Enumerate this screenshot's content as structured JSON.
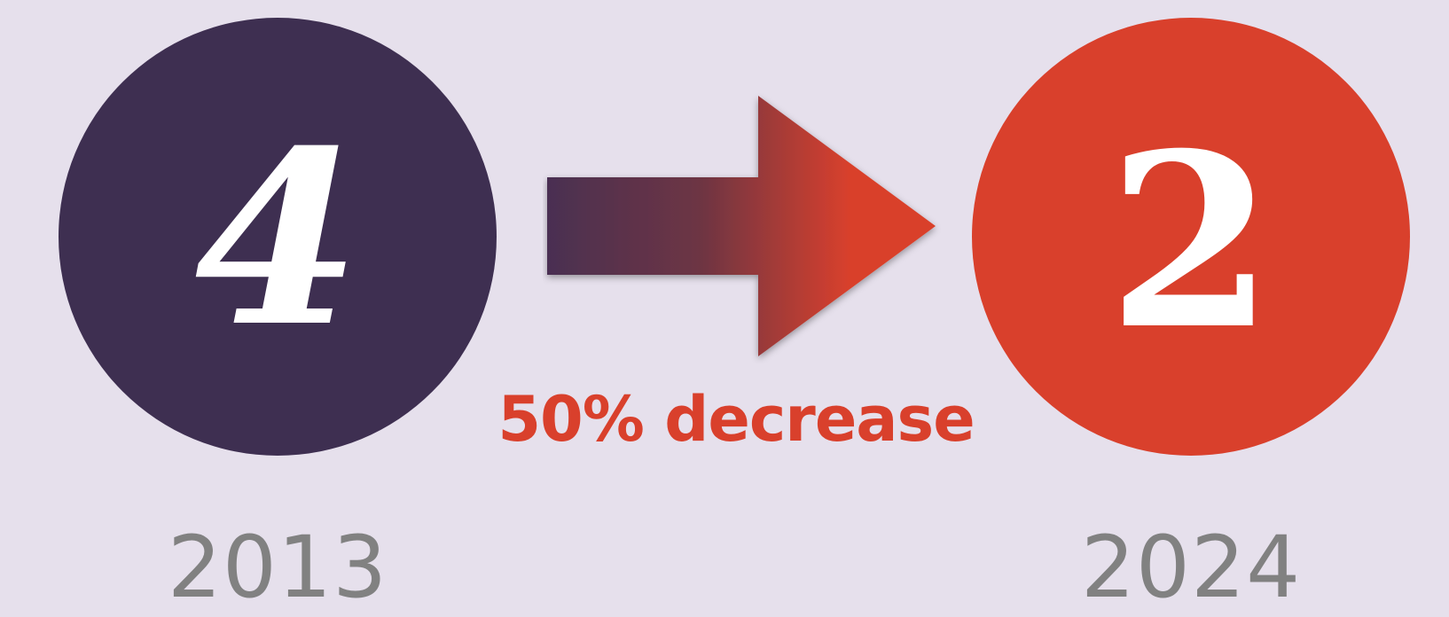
{
  "comparison": {
    "before": {
      "value": "4",
      "year": "2013",
      "color": "#3e2f51"
    },
    "after": {
      "value": "2",
      "year": "2024",
      "color": "#d9402c"
    },
    "change_label": "50% decrease",
    "change_color": "#d9402c",
    "arrow_icon": "right-arrow-icon",
    "background_color": "#e6e0ec",
    "year_color": "#818181"
  }
}
